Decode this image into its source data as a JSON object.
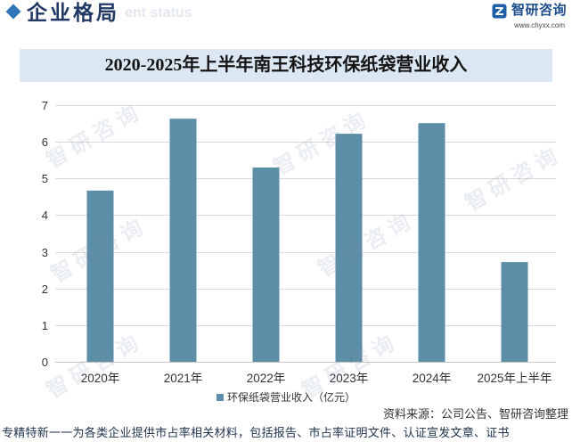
{
  "header": {
    "title": "企业格局",
    "subtitle_en": "ent status",
    "icon": "diamond-icon",
    "logo": {
      "icon": "chyxx-logo-icon",
      "name": "智研咨询",
      "url": "www.chyxx.com"
    }
  },
  "chart_data": {
    "type": "bar",
    "title": "2020-2025年上半年南王科技环保纸袋营业收入",
    "categories": [
      "2020年",
      "2021年",
      "2022年",
      "2023年",
      "2024年",
      "2025年上半年"
    ],
    "series": [
      {
        "name": "环保纸袋营业收入（亿元）",
        "values": [
          4.67,
          6.63,
          5.3,
          6.22,
          6.51,
          2.72
        ],
        "color": "#5c8ea7"
      }
    ],
    "ylim": [
      0,
      7
    ],
    "yticks": [
      0,
      1,
      2,
      3,
      4,
      5,
      6,
      7
    ],
    "grid": true,
    "legend_position": "bottom"
  },
  "source": "资料来源：公司公告、智研咨询整理",
  "footer": "专精特新一一为各类企业提供市占率相关材料，包括报告、市占率证明文件、认证宣发文章、证书",
  "watermark": {
    "text": "智研咨询"
  },
  "colors": {
    "accent": "#2f74b5",
    "header_title": "#1f3864",
    "title_bar_bg": "#dbe8f3",
    "bar": "#5c8ea7",
    "grid": "#d9d9d9",
    "logo": "#1e4e8c"
  }
}
